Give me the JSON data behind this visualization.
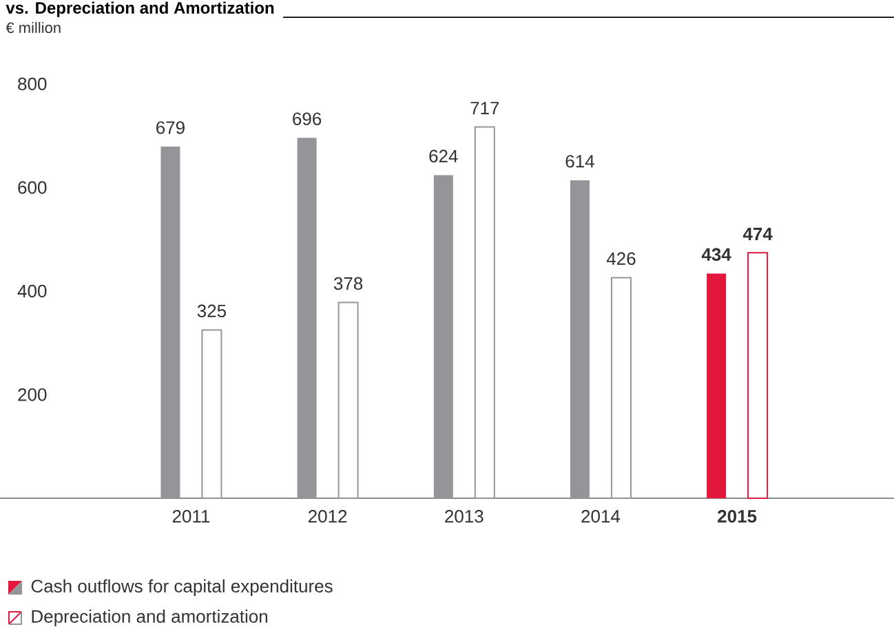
{
  "chart_data": {
    "type": "bar",
    "title": "vs. Depreciation and Amortization",
    "subtitle": "€ million",
    "categories": [
      "2011",
      "2012",
      "2013",
      "2014",
      "**2015**"
    ],
    "series": [
      {
        "name": "Cash outflows for capital expenditures",
        "colors": [
          "#939598",
          "#939598",
          "#939598",
          "#939598",
          "#e3173e"
        ],
        "values": [
          679,
          696,
          624,
          614,
          434
        ],
        "value_labels": [
          "679",
          "696",
          "624",
          "614",
          "**434**"
        ]
      },
      {
        "name": "Depreciation and amortization",
        "colors": [
          "#939598",
          "#939598",
          "#939598",
          "#939598",
          "#e3173e"
        ],
        "values": [
          325,
          378,
          717,
          426,
          474
        ],
        "value_labels": [
          "325",
          "378",
          "717",
          "426",
          "**474**"
        ]
      }
    ],
    "ylim": [
      0,
      800
    ],
    "yticks": [
      200,
      400,
      600,
      800
    ],
    "legend": "bottom left"
  }
}
